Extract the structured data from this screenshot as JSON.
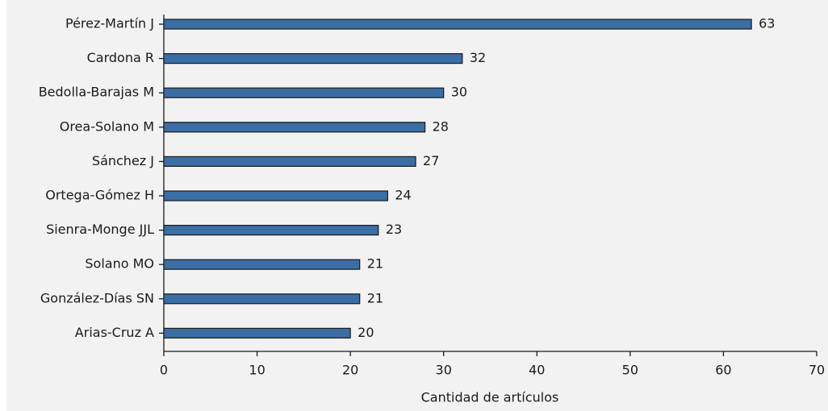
{
  "chart_data": {
    "type": "barh",
    "categories": [
      "Pérez-Martín J",
      "Cardona R",
      "Bedolla-Barajas M",
      "Orea-Solano M",
      "Sánchez J",
      "Ortega-Gómez H",
      "Sienra-Monge JJL",
      "Solano MO",
      "González-Días SN",
      "Arias-Cruz A"
    ],
    "values": [
      63,
      32,
      30,
      28,
      27,
      24,
      23,
      21,
      21,
      20
    ],
    "color": "#3a6ea5",
    "xlabel": "Cantidad de artículos",
    "xlim": [
      0,
      70
    ],
    "xticks": [
      0,
      10,
      20,
      30,
      40,
      50,
      60,
      70
    ]
  }
}
